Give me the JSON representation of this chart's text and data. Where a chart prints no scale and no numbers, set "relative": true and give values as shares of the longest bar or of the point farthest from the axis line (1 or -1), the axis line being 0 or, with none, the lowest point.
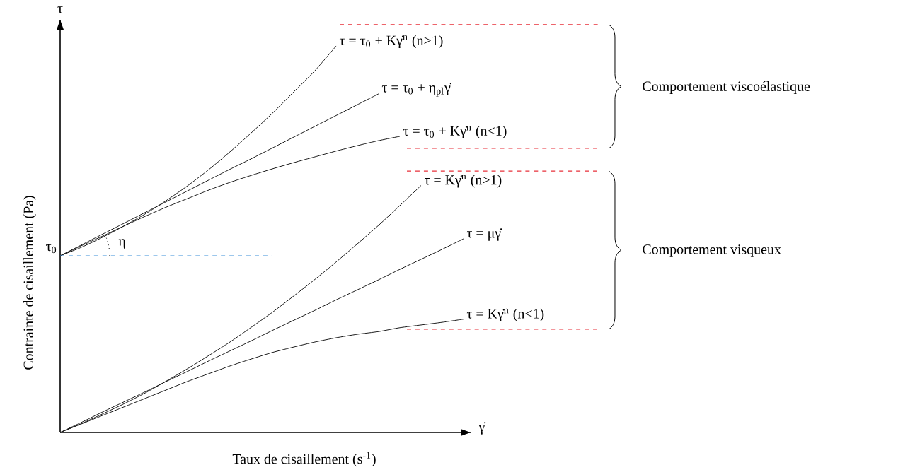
{
  "chart_data": {
    "type": "line",
    "relative": true,
    "xlabel": "Taux de cisaillement (s$^{-1}$)",
    "ylabel": "Contrainte de cisaillement  (Pa)",
    "categories": [
      null,
      null,
      null,
      null,
      null,
      null,
      null,
      null,
      null,
      null,
      null,
      null,
      null,
      null,
      null,
      null,
      null,
      null,
      null,
      null
    ],
    "series": [
      {
        "name": "τ = τ$_{0}$ + Kγ̇$^{n}$ (n>1)",
        "color": "#1a1a1a",
        "values": [
          0.457,
          0.479,
          0.505,
          0.534,
          0.565,
          0.6,
          0.638,
          0.68,
          0.726,
          0.775,
          0.826,
          0.881,
          0.936,
          1.0,
          null,
          null,
          null,
          null,
          null,
          null
        ]
      },
      {
        "name": "τ  = τ$_{0}$ + η$_{pl}$γ̇",
        "color": "#1a1a1a",
        "values": [
          0.457,
          0.485,
          0.513,
          0.541,
          0.569,
          0.597,
          0.625,
          0.653,
          0.681,
          0.708,
          0.736,
          0.764,
          0.792,
          0.82,
          0.848,
          0.876,
          null,
          null,
          null,
          null
        ]
      },
      {
        "name": "τ = τ$_{0}$ + Kγ̇$^{n}$ (n<1)",
        "color": "#1a1a1a",
        "values": [
          0.457,
          0.483,
          0.508,
          0.534,
          0.559,
          0.583,
          0.605,
          0.627,
          0.647,
          0.665,
          0.682,
          0.698,
          0.713,
          0.728,
          0.742,
          0.755,
          0.766,
          null,
          null,
          null
        ]
      },
      {
        "name": "τ = Kγ̇$^{n}$ (n>1)",
        "color": "#1a1a1a",
        "values": [
          0,
          0.023,
          0.048,
          0.074,
          0.102,
          0.133,
          0.165,
          0.199,
          0.234,
          0.272,
          0.311,
          0.353,
          0.396,
          0.441,
          0.488,
          0.536,
          0.587,
          0.639,
          null,
          null
        ]
      },
      {
        "name": "τ = μγ̇",
        "color": "#1a1a1a",
        "values": [
          0,
          0.026,
          0.053,
          0.079,
          0.105,
          0.132,
          0.158,
          0.185,
          0.211,
          0.237,
          0.264,
          0.29,
          0.316,
          0.343,
          0.369,
          0.395,
          0.422,
          0.448,
          0.474,
          0.501
        ]
      },
      {
        "name": "τ = Kγ̇$^{n}$ (n<1)",
        "color": "#1a1a1a",
        "values": [
          0,
          0.022,
          0.044,
          0.066,
          0.088,
          0.11,
          0.132,
          0.152,
          0.172,
          0.19,
          0.207,
          0.221,
          0.234,
          0.245,
          0.254,
          0.261,
          0.271,
          0.278,
          0.285,
          0.293
        ]
      }
    ],
    "ref_lines": [
      {
        "axis": "y",
        "value": 0.457,
        "label": "τ$_{0}$",
        "color": "#3a8fd9",
        "line_style": "dashed"
      },
      {
        "axis": "y",
        "value": 1.055,
        "color": "#e8303a",
        "line_style": "dashed"
      },
      {
        "axis": "y",
        "value": 0.735,
        "color": "#e8303a",
        "line_style": "dashed"
      },
      {
        "axis": "y",
        "value": 0.676,
        "color": "#e8303a",
        "line_style": "dashed"
      },
      {
        "axis": "y",
        "value": 0.267,
        "color": "#e8303a",
        "line_style": "dashed"
      }
    ],
    "annotations": [
      "τ",
      "γ̇",
      "η",
      "Comportement viscoélastique",
      "Comportement visqueux"
    ]
  }
}
